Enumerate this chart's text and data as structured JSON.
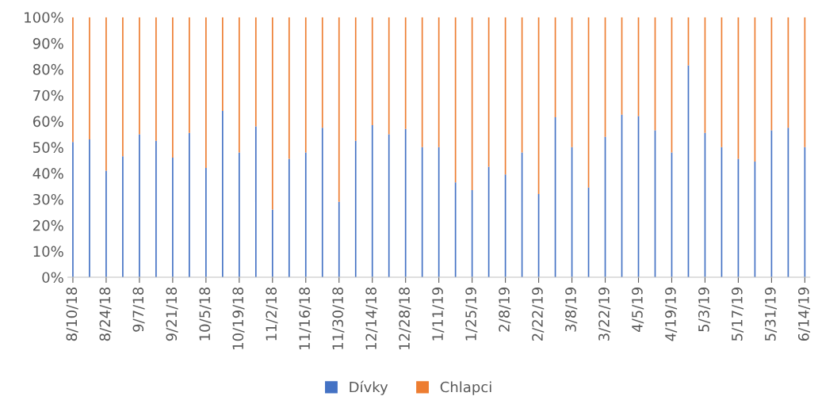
{
  "chart_data": {
    "type": "bar",
    "stacked": true,
    "categories": [
      "8/10/18",
      null,
      "8/24/18",
      null,
      "9/7/18",
      null,
      "9/21/18",
      null,
      "10/5/18",
      null,
      "10/19/18",
      null,
      "11/2/18",
      null,
      "11/16/18",
      null,
      "11/30/18",
      null,
      "12/14/18",
      null,
      "12/28/18",
      null,
      "1/11/19",
      null,
      "1/25/19",
      null,
      "2/8/19",
      null,
      "2/22/19",
      null,
      "3/8/19",
      null,
      "3/22/19",
      null,
      "4/5/19",
      null,
      "4/19/19",
      null,
      "5/3/19",
      null,
      "5/17/19",
      null,
      "5/31/19",
      null,
      "6/14/19"
    ],
    "series": [
      {
        "name": "Dívky",
        "color": "#4472c4",
        "values": [
          52,
          53,
          41,
          46.5,
          55,
          52.5,
          46,
          55.5,
          42,
          64,
          48,
          58,
          26,
          45.5,
          48,
          57.5,
          29,
          52.5,
          58.5,
          55,
          57,
          50,
          50,
          36.5,
          33.5,
          42.5,
          39.5,
          48,
          32,
          61.5,
          50,
          34.5,
          54,
          62.5,
          62,
          56.5,
          48,
          81.5,
          55.5,
          50,
          45.5,
          44.5,
          56.5,
          57.5,
          50
        ]
      },
      {
        "name": "Chlapci",
        "color": "#ed7d31",
        "values": [
          48,
          47,
          59,
          53.5,
          45,
          47.5,
          54,
          44.5,
          58,
          36,
          52,
          42,
          74,
          54.5,
          52,
          42.5,
          71,
          47.5,
          41.5,
          45,
          43,
          50,
          50,
          63.5,
          66.5,
          57.5,
          60.5,
          52,
          68,
          38.5,
          50,
          65.5,
          46,
          37.5,
          38,
          43.5,
          52,
          18.5,
          44.5,
          50,
          54.5,
          55.5,
          43.5,
          42.5,
          50
        ]
      }
    ],
    "ylim": [
      0,
      100
    ],
    "yticks": [
      {
        "value": 0,
        "label": "0%"
      },
      {
        "value": 10,
        "label": "10%"
      },
      {
        "value": 20,
        "label": "20%"
      },
      {
        "value": 30,
        "label": "30%"
      },
      {
        "value": 40,
        "label": "40%"
      },
      {
        "value": 50,
        "label": "50%"
      },
      {
        "value": 60,
        "label": "60%"
      },
      {
        "value": 70,
        "label": "70%"
      },
      {
        "value": 80,
        "label": "80%"
      },
      {
        "value": 90,
        "label": "90%"
      },
      {
        "value": 100,
        "label": "100%"
      }
    ],
    "legend": "bottom"
  }
}
